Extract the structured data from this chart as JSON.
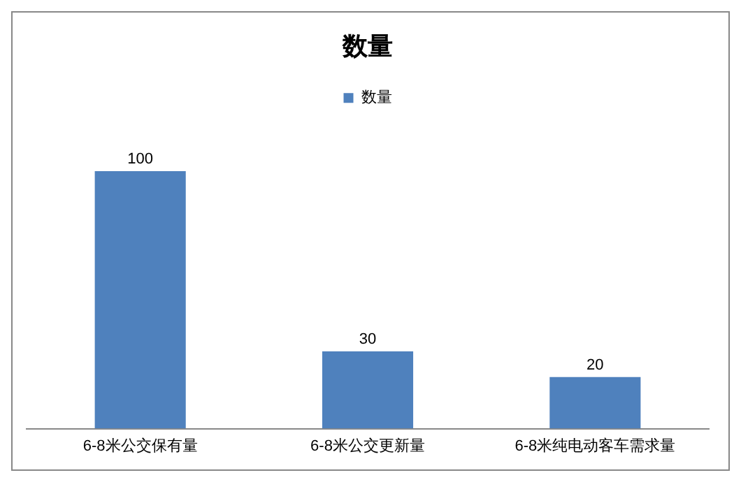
{
  "chart_data": {
    "type": "bar",
    "title": "数量",
    "categories": [
      "6-8米公交保有量",
      "6-8米公交更新量",
      "6-8米纯电动客车需求量"
    ],
    "series": [
      {
        "name": "数量",
        "color": "#4f81bd",
        "values": [
          100,
          30,
          20
        ]
      }
    ],
    "data_labels": true,
    "legend": "top",
    "grid": false
  }
}
